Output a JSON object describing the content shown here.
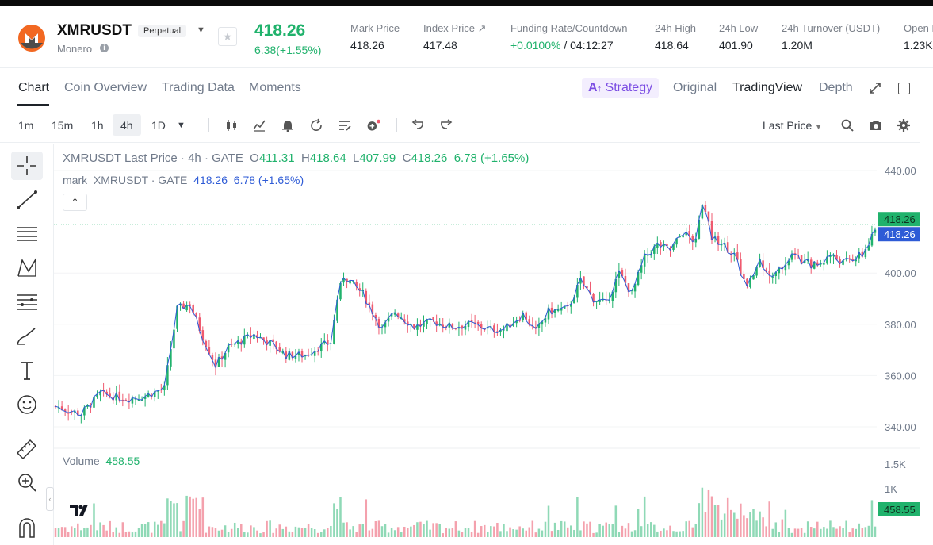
{
  "header": {
    "symbol": "XMRUSDT",
    "badge": "Perpetual",
    "coin_name": "Monero",
    "last_price": "418.26",
    "change": "6.38(+1.55%)",
    "stats": [
      {
        "label": "Mark Price",
        "value": "418.26"
      },
      {
        "label": "Index Price ↗",
        "value": "417.48"
      },
      {
        "label": "Funding Rate/Countdown",
        "value_green": "+0.0100%",
        "value_rest": " / 04:12:27"
      },
      {
        "label": "24h High",
        "value": "418.64"
      },
      {
        "label": "24h Low",
        "value": "401.90"
      },
      {
        "label": "24h Turnover (USDT)",
        "value": "1.20M"
      },
      {
        "label": "Open I",
        "value": "1.23K"
      }
    ]
  },
  "tabs": [
    "Chart",
    "Coin Overview",
    "Trading Data",
    "Moments"
  ],
  "view_tabs": {
    "strategy": "Strategy",
    "original": "Original",
    "tradingview": "TradingView",
    "depth": "Depth"
  },
  "toolbar": {
    "intervals": [
      "1m",
      "15m",
      "1h",
      "4h",
      "1D"
    ],
    "active_interval": "4h",
    "price_source": "Last Price"
  },
  "legend": {
    "title": "XMRUSDT Last Price · 4h · GATE",
    "o_label": "O",
    "o": "411.31",
    "h_label": "H",
    "h": "418.64",
    "l_label": "L",
    "l": "407.99",
    "c_label": "C",
    "c": "418.26",
    "chg": "6.78 (+1.65%)",
    "mark_title": "mark_XMRUSDT · GATE",
    "mark_price": "418.26",
    "mark_chg": "6.78 (+1.65%)",
    "volume_label": "Volume",
    "volume_value": "458.55"
  },
  "colors": {
    "up": "#20b26c",
    "down": "#ef5a6f",
    "mark_line": "#2e5bd6",
    "up_vol": "#8fd9b6",
    "down_vol": "#f4a1ad"
  },
  "chart_data": {
    "type": "candlestick",
    "price_axis": {
      "ticks": [
        440,
        400,
        380,
        360,
        340
      ],
      "labels": [
        "440.00",
        "400.00",
        "380.00",
        "360.00",
        "340.00"
      ]
    },
    "price_tags": {
      "last": "418.26",
      "mark": "418.26"
    },
    "volume_axis": {
      "ticks": [
        1500,
        1000
      ],
      "labels": [
        "1.5K",
        "1K"
      ]
    },
    "volume_tag": "458.55",
    "keypoints": [
      [
        0,
        348
      ],
      [
        8,
        345
      ],
      [
        14,
        353
      ],
      [
        22,
        351
      ],
      [
        28,
        352
      ],
      [
        34,
        355
      ],
      [
        38,
        386
      ],
      [
        42,
        388
      ],
      [
        46,
        375
      ],
      [
        50,
        364
      ],
      [
        54,
        371
      ],
      [
        62,
        376
      ],
      [
        68,
        372
      ],
      [
        72,
        368
      ],
      [
        78,
        368
      ],
      [
        82,
        371
      ],
      [
        86,
        373
      ],
      [
        88,
        390
      ],
      [
        90,
        399
      ],
      [
        96,
        392
      ],
      [
        102,
        378
      ],
      [
        106,
        385
      ],
      [
        112,
        379
      ],
      [
        118,
        381
      ],
      [
        124,
        379
      ],
      [
        130,
        380
      ],
      [
        136,
        378
      ],
      [
        140,
        378
      ],
      [
        146,
        384
      ],
      [
        150,
        377
      ],
      [
        154,
        385
      ],
      [
        160,
        386
      ],
      [
        164,
        397
      ],
      [
        168,
        390
      ],
      [
        172,
        388
      ],
      [
        176,
        400
      ],
      [
        180,
        392
      ],
      [
        184,
        406
      ],
      [
        188,
        411
      ],
      [
        192,
        409
      ],
      [
        196,
        416
      ],
      [
        200,
        412
      ],
      [
        202,
        428
      ],
      [
        205,
        414
      ],
      [
        208,
        412
      ],
      [
        212,
        407
      ],
      [
        216,
        394
      ],
      [
        220,
        405
      ],
      [
        224,
        398
      ],
      [
        230,
        407
      ],
      [
        234,
        404
      ],
      [
        238,
        403
      ],
      [
        242,
        407
      ],
      [
        246,
        404
      ],
      [
        252,
        407
      ],
      [
        256,
        416
      ]
    ],
    "candle_count": 257,
    "volume_seed": 7
  }
}
